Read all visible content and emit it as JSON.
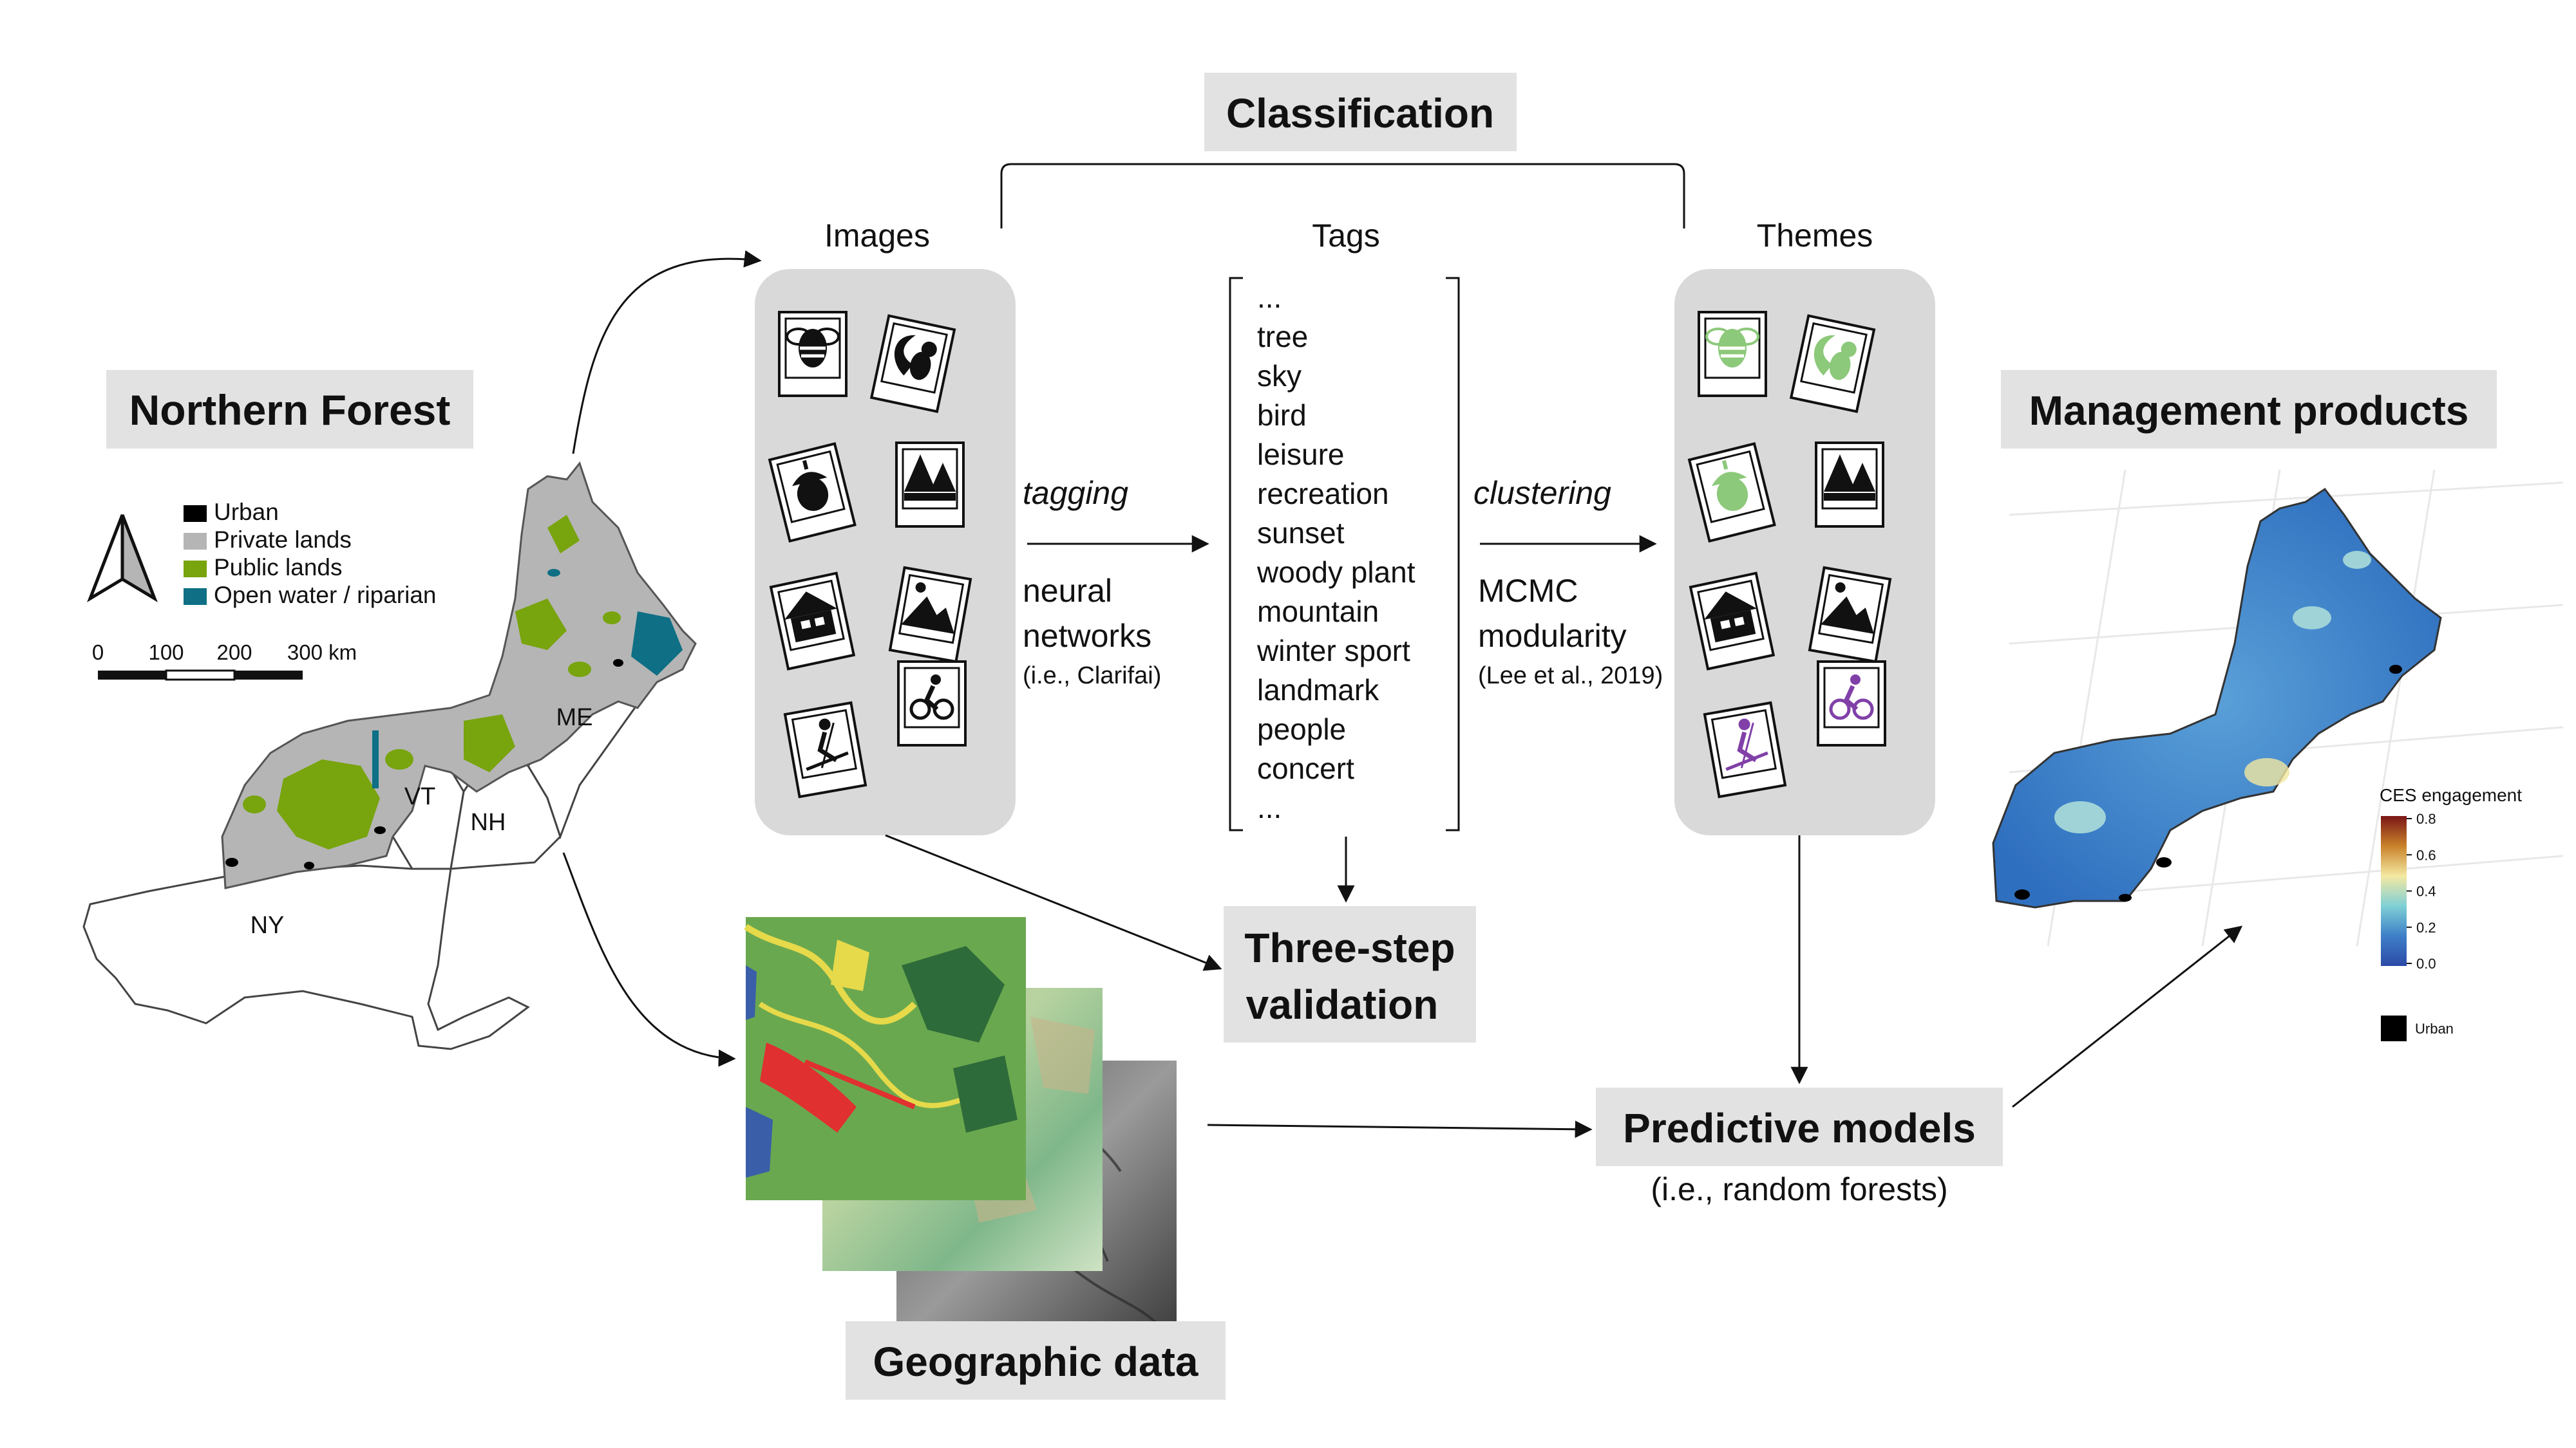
{
  "colors": {
    "box_bg": "#e2e2e2",
    "panel_bg": "#d9d9d9",
    "urban": "#000000",
    "private": "#b5b5b5",
    "public": "#78a40d",
    "water": "#0e6f85",
    "theme_green": "#8cc97a",
    "theme_purple": "#8040a8",
    "stroke": "#333333"
  },
  "titles": {
    "northern_forest": "Northern Forest",
    "classification": "Classification",
    "management": "Management products",
    "validation_line1": "Three-step",
    "validation_line2": "validation",
    "predictive": "Predictive models",
    "predictive_sub": "(i.e., random forests)",
    "geographic": "Geographic data"
  },
  "columns": {
    "images": "Images",
    "tags": "Tags",
    "themes": "Themes"
  },
  "tagging": {
    "label": "tagging",
    "method_line1": "neural",
    "method_line2": "networks",
    "method_note": "(i.e., Clarifai)"
  },
  "clustering": {
    "label": "clustering",
    "method_line1": "MCMC",
    "method_line2": "modularity",
    "method_note": "(Lee et al., 2019)"
  },
  "tags_list": [
    "...",
    "tree",
    "sky",
    "bird",
    "leisure",
    "recreation",
    "sunset",
    "woody plant",
    "mountain",
    "winter sport",
    "landmark",
    "people",
    "concert",
    "..."
  ],
  "map": {
    "legend": [
      {
        "label": "Urban",
        "color": "#000000"
      },
      {
        "label": "Private lands",
        "color": "#b5b5b5"
      },
      {
        "label": "Public lands",
        "color": "#78a40d"
      },
      {
        "label": "Open water / riparian",
        "color": "#0e6f85"
      }
    ],
    "scale_ticks": [
      "0",
      "100",
      "200",
      "300 km"
    ],
    "states": [
      "ME",
      "VT",
      "NH",
      "NY"
    ]
  },
  "image_icons": [
    "bee-icon",
    "squirrel-icon",
    "acorn-icon",
    "forest-icon",
    "cabin-icon",
    "mountain-sun-icon",
    "skier-icon",
    "cyclist-icon"
  ],
  "colorbar": {
    "title": "CES engagement",
    "ticks": [
      "0.8",
      "0.6",
      "0.4",
      "0.2",
      "0.0"
    ],
    "urban_label": "Urban",
    "stops": [
      "#7a1616",
      "#c9822a",
      "#f4e9a2",
      "#7fd0d6",
      "#3e7fc8",
      "#2c4aa6"
    ]
  }
}
